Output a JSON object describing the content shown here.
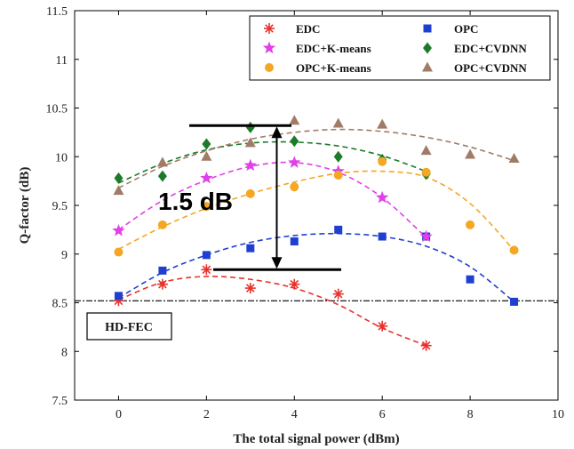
{
  "chart_data": {
    "type": "scatter",
    "xlabel": "The total signal power (dBm)",
    "ylabel": "Q-factor (dB)",
    "xlim": [
      -1,
      10
    ],
    "ylim": [
      7.5,
      11.5
    ],
    "xticks": [
      0,
      2,
      4,
      6,
      8,
      10
    ],
    "yticks": [
      7.5,
      8,
      8.5,
      9,
      9.5,
      10,
      10.5,
      11,
      11.5
    ],
    "grid": false,
    "legend_position": "top-right",
    "threshold": {
      "label": "HD-FEC",
      "value": 8.52,
      "color": "#000000"
    },
    "annotation": {
      "label": "1.5 dB",
      "from": 8.84,
      "to": 10.32,
      "x": 3.6
    },
    "series": [
      {
        "name": "EDC",
        "marker": "asterisk",
        "color": "#e8322c",
        "x": [
          0,
          1,
          2,
          3,
          4,
          5,
          6,
          7
        ],
        "y": [
          8.52,
          8.69,
          8.84,
          8.65,
          8.69,
          8.59,
          8.26,
          8.06
        ],
        "fit_x": [
          0,
          1,
          2,
          3,
          4,
          5,
          6,
          7
        ],
        "fit_y": [
          8.53,
          8.71,
          8.77,
          8.74,
          8.65,
          8.48,
          8.24,
          8.06
        ]
      },
      {
        "name": "OPC",
        "marker": "square",
        "color": "#1f3fd1",
        "x": [
          0,
          1,
          2,
          3,
          4,
          5,
          6,
          7,
          8,
          9
        ],
        "y": [
          8.57,
          8.83,
          8.99,
          9.06,
          9.13,
          9.25,
          9.18,
          9.18,
          8.74,
          8.51
        ],
        "fit_x": [
          0,
          1,
          2,
          3,
          4,
          5,
          6,
          7,
          8,
          9
        ],
        "fit_y": [
          8.55,
          8.81,
          8.99,
          9.12,
          9.19,
          9.21,
          9.18,
          9.08,
          8.87,
          8.51
        ]
      },
      {
        "name": "EDC+K-means",
        "marker": "star",
        "color": "#e040e8",
        "x": [
          0,
          2,
          3,
          4,
          5,
          6,
          7
        ],
        "y": [
          9.24,
          9.78,
          9.91,
          9.94,
          9.85,
          9.58,
          9.18
        ],
        "fit_x": [
          0,
          1,
          2,
          3,
          4,
          5,
          6,
          7
        ],
        "fit_y": [
          9.25,
          9.55,
          9.76,
          9.9,
          9.94,
          9.84,
          9.58,
          9.17
        ]
      },
      {
        "name": "EDC+CVDNN",
        "marker": "diamond",
        "color": "#1d7a2a",
        "x": [
          0,
          1,
          2,
          3,
          4,
          5,
          6,
          7
        ],
        "y": [
          9.78,
          9.8,
          10.13,
          10.3,
          10.16,
          10.0,
          9.97,
          9.82
        ],
        "fit_x": [
          0,
          1,
          2,
          3,
          4,
          5,
          6,
          7
        ],
        "fit_y": [
          9.73,
          9.93,
          10.07,
          10.14,
          10.15,
          10.11,
          10.01,
          9.85
        ]
      },
      {
        "name": "OPC+K-means",
        "marker": "circle",
        "color": "#f5a623",
        "x": [
          0,
          1,
          2,
          3,
          4,
          5,
          6,
          7,
          8,
          9
        ],
        "y": [
          9.02,
          9.3,
          9.49,
          9.62,
          9.69,
          9.81,
          9.95,
          9.84,
          9.3,
          9.04
        ],
        "fit_x": [
          0,
          1,
          2,
          3,
          4,
          5,
          6,
          7,
          8,
          9
        ],
        "fit_y": [
          9.05,
          9.28,
          9.47,
          9.62,
          9.74,
          9.83,
          9.85,
          9.79,
          9.52,
          9.04
        ]
      },
      {
        "name": "OPC+CVDNN",
        "marker": "triangle",
        "color": "#a07c66",
        "x": [
          0,
          1,
          2,
          3,
          4,
          5,
          6,
          7,
          8,
          9
        ],
        "y": [
          9.65,
          9.94,
          10.0,
          10.14,
          10.37,
          10.34,
          10.33,
          10.06,
          10.02,
          9.98
        ],
        "fit_x": [
          0,
          1,
          2,
          3,
          4,
          5,
          6,
          7,
          8,
          9
        ],
        "fit_y": [
          9.68,
          9.9,
          10.06,
          10.18,
          10.25,
          10.28,
          10.26,
          10.2,
          10.1,
          9.96
        ]
      }
    ]
  }
}
